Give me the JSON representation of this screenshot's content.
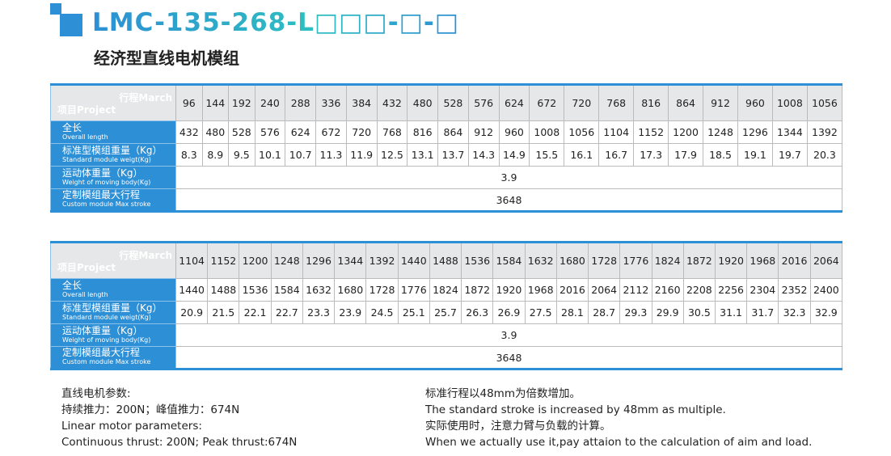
{
  "header": {
    "model": "LMC-135-268-L□□□-□-□",
    "subtitle": "经济型直线电机模组"
  },
  "labels": {
    "stroke": "行程March",
    "project": "项目Project",
    "rows": [
      {
        "cn": "全长",
        "en": "Overall length"
      },
      {
        "cn": "标准型模组重量（Kg）",
        "en": "Standard module weigt(Kg)"
      },
      {
        "cn": "运动体重量（Kg）",
        "en": "Weight of moving body(Kg)"
      },
      {
        "cn": "定制模组最大行程",
        "en": "Custom module Max stroke"
      }
    ]
  },
  "tables": [
    {
      "stroke": [
        "96",
        "144",
        "192",
        "240",
        "288",
        "336",
        "384",
        "432",
        "480",
        "528",
        "576",
        "624",
        "672",
        "720",
        "768",
        "816",
        "864",
        "912",
        "960",
        "1008",
        "1056"
      ],
      "length": [
        "432",
        "480",
        "528",
        "576",
        "624",
        "672",
        "720",
        "768",
        "816",
        "864",
        "912",
        "960",
        "1008",
        "1056",
        "1104",
        "1152",
        "1200",
        "1248",
        "1296",
        "1344",
        "1392"
      ],
      "weight": [
        "8.3",
        "8.9",
        "9.5",
        "10.1",
        "10.7",
        "11.3",
        "11.9",
        "12.5",
        "13.1",
        "13.7",
        "14.3",
        "14.9",
        "15.5",
        "16.1",
        "16.7",
        "17.3",
        "17.9",
        "18.5",
        "19.1",
        "19.7",
        "20.3"
      ],
      "moving": "3.9",
      "max": "3648"
    },
    {
      "stroke": [
        "1104",
        "1152",
        "1200",
        "1248",
        "1296",
        "1344",
        "1392",
        "1440",
        "1488",
        "1536",
        "1584",
        "1632",
        "1680",
        "1728",
        "1776",
        "1824",
        "1872",
        "1920",
        "1968",
        "2016",
        "2064"
      ],
      "length": [
        "1440",
        "1488",
        "1536",
        "1584",
        "1632",
        "1680",
        "1728",
        "1776",
        "1824",
        "1872",
        "1920",
        "1968",
        "2016",
        "2064",
        "2112",
        "2160",
        "2208",
        "2256",
        "2304",
        "2352",
        "2400"
      ],
      "weight": [
        "20.9",
        "21.5",
        "22.1",
        "22.7",
        "23.3",
        "23.9",
        "24.5",
        "25.1",
        "25.7",
        "26.3",
        "26.9",
        "27.5",
        "28.1",
        "28.7",
        "29.3",
        "29.9",
        "30.5",
        "31.1",
        "31.7",
        "32.3",
        "32.9"
      ],
      "moving": "3.9",
      "max": "3648"
    }
  ],
  "notes": {
    "left": [
      "直线电机参数:",
      "持续推力：200N；峰值推力：674N",
      "Linear motor parameters:",
      "Continuous thrust: 200N;  Peak thrust:674N"
    ],
    "right": [
      "标准行程以48mm为倍数增加。",
      "The standard stroke is increased by 48mm as multiple.",
      "实际使用时，注意力臂与负载的计算。",
      "When we actually use it,pay attaion to the calculation of aim and load."
    ]
  },
  "colors": {
    "accent": "#2d8fd5",
    "header_cell": "#e6e7e8"
  }
}
